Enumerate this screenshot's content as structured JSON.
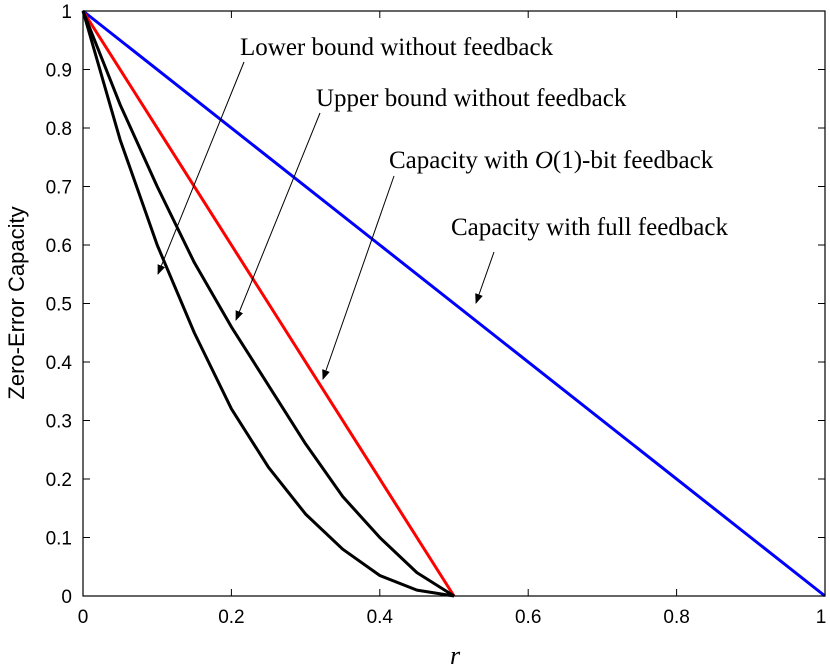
{
  "chart_data": {
    "type": "line",
    "xlabel": "r",
    "ylabel": "Zero-Error Capacity",
    "xlim": [
      0,
      1
    ],
    "ylim": [
      0,
      1
    ],
    "xticks": [
      0,
      0.2,
      0.4,
      0.6,
      0.8,
      1
    ],
    "xtick_labels": [
      "0",
      "0.2",
      "0.4",
      "0.6",
      "0.8",
      "1"
    ],
    "yticks": [
      0,
      0.1,
      0.2,
      0.3,
      0.4,
      0.5,
      0.6,
      0.7,
      0.8,
      0.9,
      1
    ],
    "ytick_labels": [
      "0",
      "0.1",
      "0.2",
      "0.3",
      "0.4",
      "0.5",
      "0.6",
      "0.7",
      "0.8",
      "0.9",
      "1"
    ],
    "grid": false,
    "series": [
      {
        "name": "Capacity with full feedback",
        "color": "#0000ff",
        "x": [
          0,
          1
        ],
        "y": [
          1,
          0
        ]
      },
      {
        "name": "Capacity with O(1)-bit feedback",
        "color": "#ff0000",
        "x": [
          0,
          0.5
        ],
        "y": [
          1,
          0
        ]
      },
      {
        "name": "Upper bound without feedback",
        "color": "#000000",
        "x": [
          0,
          0.05,
          0.1,
          0.15,
          0.2,
          0.25,
          0.3,
          0.35,
          0.4,
          0.45,
          0.5
        ],
        "y": [
          1,
          0.84,
          0.7,
          0.57,
          0.46,
          0.36,
          0.26,
          0.17,
          0.1,
          0.04,
          0
        ]
      },
      {
        "name": "Lower bound without feedback",
        "color": "#000000",
        "x": [
          0,
          0.05,
          0.1,
          0.15,
          0.2,
          0.25,
          0.3,
          0.35,
          0.4,
          0.45,
          0.5
        ],
        "y": [
          1,
          0.78,
          0.6,
          0.45,
          0.32,
          0.22,
          0.14,
          0.08,
          0.035,
          0.01,
          0
        ]
      }
    ],
    "annotations": [
      {
        "text": "Lower bound without feedback",
        "series": 3
      },
      {
        "text": "Upper bound without feedback",
        "series": 2
      },
      {
        "text_prefix": "Capacity with ",
        "text_math": "O",
        "text_math_rest": "(1)",
        "text_suffix": "-bit feedback",
        "series": 1
      },
      {
        "text": "Capacity with full feedback",
        "series": 0
      }
    ]
  }
}
